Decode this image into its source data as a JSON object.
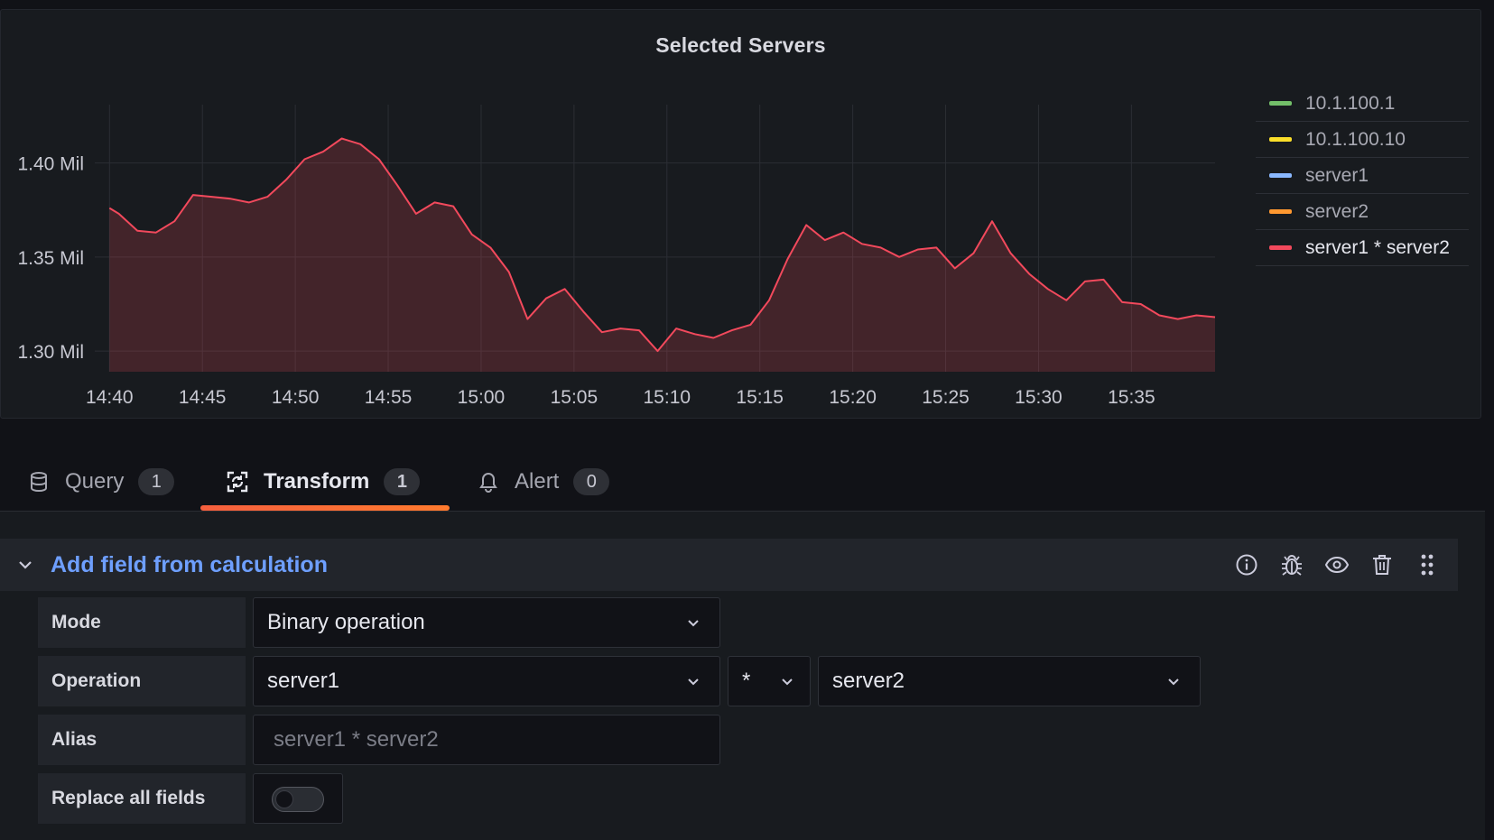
{
  "panel": {
    "title": "Selected Servers"
  },
  "chart_data": {
    "type": "area",
    "title": "Selected Servers",
    "xlabel": "",
    "ylabel": "",
    "x_ticks": [
      "14:40",
      "14:45",
      "14:50",
      "14:55",
      "15:00",
      "15:05",
      "15:10",
      "15:15",
      "15:20",
      "15:25",
      "15:30",
      "15:35"
    ],
    "y_ticks": [
      "1.30 Mil",
      "1.35 Mil",
      "1.40 Mil"
    ],
    "y_tick_values": [
      1.3,
      1.35,
      1.4
    ],
    "ylim": [
      1.289,
      1.431
    ],
    "xlim": [
      "14:39.5",
      "15:38.5"
    ],
    "x_minutes": [
      0.0,
      0.5,
      1.5,
      2.5,
      3.5,
      4.5,
      5.5,
      6.5,
      7.5,
      8.5,
      9.5,
      10.5,
      11.5,
      12.5,
      13.5,
      14.5,
      15.5,
      16.5,
      17.5,
      18.5,
      19.5,
      20.5,
      21.5,
      22.5,
      23.5,
      24.5,
      25.5,
      26.5,
      27.5,
      28.5,
      29.5,
      30.5,
      31.5,
      32.5,
      33.5,
      34.5,
      35.5,
      36.5,
      37.5,
      38.5,
      39.5,
      40.5,
      41.5,
      42.5,
      43.5,
      44.5,
      45.5,
      46.5,
      47.5,
      48.5,
      49.5,
      50.5,
      51.5,
      52.5,
      53.5,
      54.5,
      55.5,
      56.5,
      57.5,
      58.5,
      59.5
    ],
    "series": [
      {
        "name": "10.1.100.1",
        "color": "#73bf69",
        "values": []
      },
      {
        "name": "10.1.100.10",
        "color": "#fade2a",
        "values": []
      },
      {
        "name": "server1",
        "color": "#8ab8ff",
        "values": []
      },
      {
        "name": "server2",
        "color": "#ff9830",
        "values": []
      },
      {
        "name": "server1 * server2",
        "color": "#f2495c",
        "values": [
          1.376,
          1.373,
          1.364,
          1.363,
          1.369,
          1.383,
          1.382,
          1.381,
          1.379,
          1.382,
          1.391,
          1.402,
          1.406,
          1.413,
          1.41,
          1.402,
          1.388,
          1.373,
          1.379,
          1.377,
          1.362,
          1.355,
          1.342,
          1.317,
          1.328,
          1.333,
          1.321,
          1.31,
          1.312,
          1.311,
          1.3,
          1.312,
          1.309,
          1.307,
          1.311,
          1.314,
          1.327,
          1.349,
          1.367,
          1.359,
          1.363,
          1.357,
          1.355,
          1.35,
          1.354,
          1.355,
          1.344,
          1.352,
          1.369,
          1.352,
          1.341,
          1.333,
          1.327,
          1.337,
          1.338,
          1.326,
          1.325,
          1.319,
          1.317,
          1.319,
          1.318
        ]
      }
    ],
    "legend_placement": "right",
    "grid": true
  },
  "tabs": [
    {
      "label": "Query",
      "count": "1",
      "icon": "database-icon"
    },
    {
      "label": "Transform",
      "count": "1",
      "icon": "transform-icon"
    },
    {
      "label": "Alert",
      "count": "0",
      "icon": "bell-icon"
    }
  ],
  "transformation": {
    "title": "Add field from calculation",
    "actions": [
      "info-icon",
      "bug-icon",
      "eye-icon",
      "trash-icon",
      "drag-handle-icon"
    ],
    "mode_label": "Mode",
    "mode_value": "Binary operation",
    "operation_label": "Operation",
    "operation_left": "server1",
    "operation_operator": "*",
    "operation_right": "server2",
    "alias_label": "Alias",
    "alias_placeholder": "server1 * server2",
    "alias_value": "",
    "replace_label": "Replace all fields",
    "replace_enabled": false
  }
}
